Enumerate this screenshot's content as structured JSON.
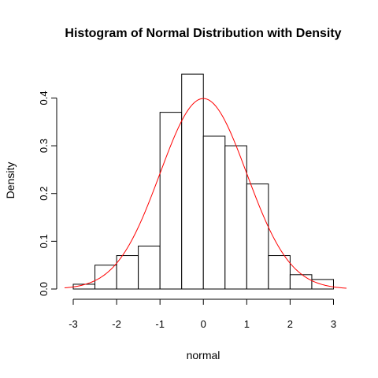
{
  "chart_data": {
    "type": "bar",
    "title": "Histogram of Normal Distribution with Density",
    "xlabel": "normal",
    "ylabel": "Density",
    "bins": [
      {
        "x0": -3.0,
        "x1": -2.5,
        "density": 0.01
      },
      {
        "x0": -2.5,
        "x1": -2.0,
        "density": 0.05
      },
      {
        "x0": -2.0,
        "x1": -1.5,
        "density": 0.07
      },
      {
        "x0": -1.5,
        "x1": -1.0,
        "density": 0.09
      },
      {
        "x0": -1.0,
        "x1": -0.5,
        "density": 0.37
      },
      {
        "x0": -0.5,
        "x1": 0.0,
        "density": 0.45
      },
      {
        "x0": 0.0,
        "x1": 0.5,
        "density": 0.32
      },
      {
        "x0": 0.5,
        "x1": 1.0,
        "density": 0.3
      },
      {
        "x0": 1.0,
        "x1": 1.5,
        "density": 0.22
      },
      {
        "x0": 1.5,
        "x1": 2.0,
        "density": 0.07
      },
      {
        "x0": 2.0,
        "x1": 2.5,
        "density": 0.03
      },
      {
        "x0": 2.5,
        "x1": 3.0,
        "density": 0.02
      }
    ],
    "density_curve": {
      "distribution": "normal",
      "mean": 0,
      "sd": 1,
      "x_range": [
        -3.2,
        3.3
      ],
      "color": "#ff0000"
    },
    "xlim": [
      -3.2,
      3.3
    ],
    "ylim": [
      0,
      0.47
    ],
    "x_ticks": [
      -3,
      -2,
      -1,
      0,
      1,
      2,
      3
    ],
    "x_tick_labels": [
      "-3",
      "-2",
      "-1",
      "0",
      "1",
      "2",
      "3"
    ],
    "y_ticks": [
      0,
      0.1,
      0.2,
      0.3,
      0.4
    ],
    "y_tick_labels": [
      "0.0",
      "0.1",
      "0.2",
      "0.3",
      "0.4"
    ],
    "grid": false,
    "bar_fill": "#ffffff",
    "bar_stroke": "#000000"
  }
}
